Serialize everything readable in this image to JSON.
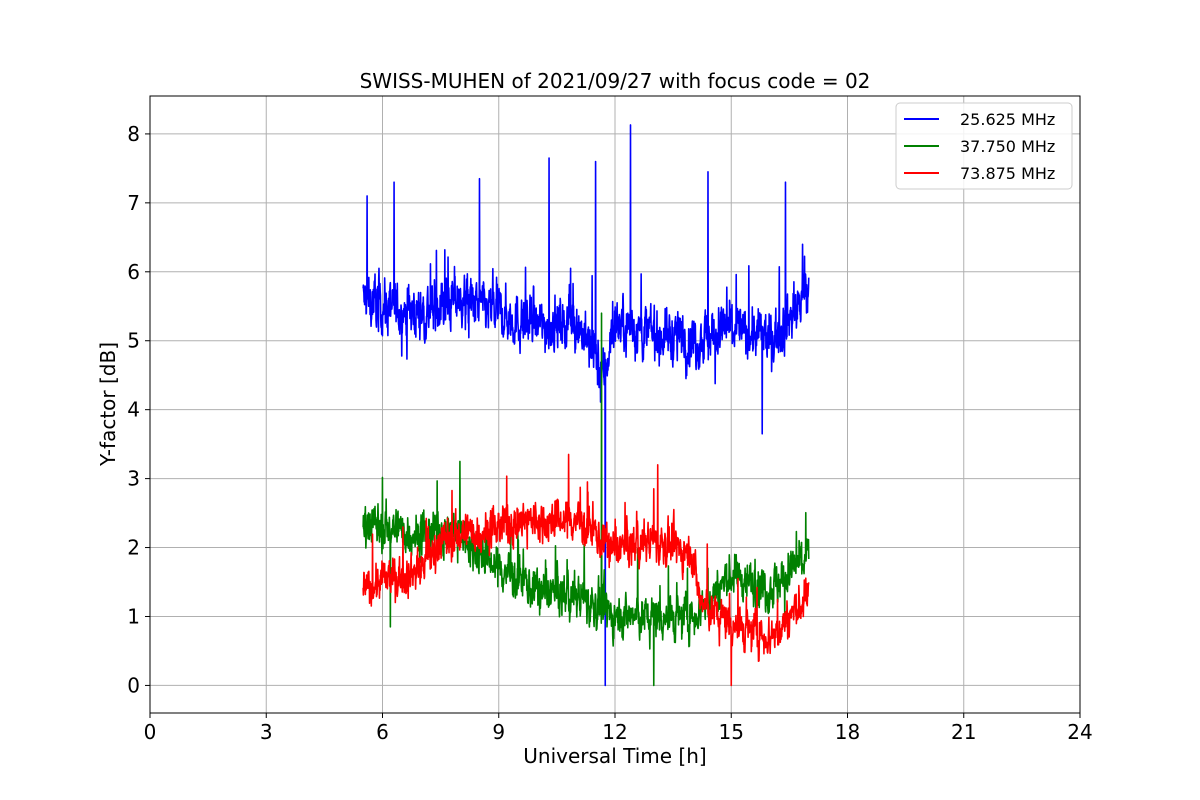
{
  "chart_data": {
    "type": "line",
    "title": "SWISS-MUHEN of 2021/09/27 with focus code = 02",
    "xlabel": "Universal Time [h]",
    "ylabel": "Y-factor [dB]",
    "xlim": [
      0,
      24
    ],
    "ylim": [
      -0.4,
      8.55
    ],
    "xticks": [
      0,
      3,
      6,
      9,
      12,
      15,
      18,
      21,
      24
    ],
    "yticks": [
      0,
      1,
      2,
      3,
      4,
      5,
      6,
      7,
      8
    ],
    "grid": true,
    "legend_position": "upper-right",
    "series": [
      {
        "name": "25.625 MHz",
        "color": "#0000ff",
        "x_range": [
          5.5,
          17.0
        ],
        "points": [
          [
            5.5,
            5.6
          ],
          [
            6.0,
            5.5
          ],
          [
            7.0,
            5.4
          ],
          [
            8.0,
            5.6
          ],
          [
            9.0,
            5.4
          ],
          [
            10.0,
            5.2
          ],
          [
            11.0,
            5.3
          ],
          [
            11.7,
            4.5
          ],
          [
            12.0,
            5.3
          ],
          [
            13.0,
            5.1
          ],
          [
            14.0,
            5.0
          ],
          [
            15.0,
            5.2
          ],
          [
            16.0,
            5.0
          ],
          [
            17.0,
            5.7
          ]
        ],
        "spikes": [
          [
            5.6,
            7.1
          ],
          [
            6.3,
            7.3
          ],
          [
            8.5,
            7.35
          ],
          [
            10.3,
            7.65
          ],
          [
            11.5,
            7.6
          ],
          [
            12.4,
            8.13
          ],
          [
            14.4,
            7.45
          ],
          [
            16.4,
            7.3
          ],
          [
            11.75,
            0.0
          ],
          [
            15.8,
            3.65
          ]
        ]
      },
      {
        "name": "37.750 MHz",
        "color": "#008000",
        "x_range": [
          5.5,
          17.0
        ],
        "points": [
          [
            5.5,
            2.4
          ],
          [
            6.0,
            2.3
          ],
          [
            7.0,
            2.2
          ],
          [
            8.0,
            2.2
          ],
          [
            9.0,
            1.7
          ],
          [
            10.0,
            1.4
          ],
          [
            11.0,
            1.3
          ],
          [
            12.0,
            1.0
          ],
          [
            13.0,
            1.0
          ],
          [
            14.0,
            1.0
          ],
          [
            15.0,
            1.6
          ],
          [
            16.0,
            1.4
          ],
          [
            17.0,
            1.9
          ]
        ],
        "spikes": [
          [
            8.0,
            3.25
          ],
          [
            11.65,
            5.4
          ],
          [
            13.0,
            0.0
          ],
          [
            6.2,
            0.85
          ]
        ]
      },
      {
        "name": "73.875 MHz",
        "color": "#ff0000",
        "x_range": [
          5.5,
          17.0
        ],
        "points": [
          [
            5.5,
            1.4
          ],
          [
            6.0,
            1.5
          ],
          [
            7.0,
            1.7
          ],
          [
            7.5,
            2.1
          ],
          [
            8.0,
            2.2
          ],
          [
            9.0,
            2.3
          ],
          [
            10.0,
            2.4
          ],
          [
            11.0,
            2.4
          ],
          [
            12.0,
            2.0
          ],
          [
            13.0,
            2.1
          ],
          [
            14.0,
            1.9
          ],
          [
            14.2,
            1.2
          ],
          [
            15.0,
            0.9
          ],
          [
            16.0,
            0.7
          ],
          [
            17.0,
            1.3
          ]
        ],
        "spikes": [
          [
            10.8,
            3.35
          ],
          [
            13.1,
            3.2
          ],
          [
            15.0,
            0.0
          ]
        ]
      }
    ]
  }
}
